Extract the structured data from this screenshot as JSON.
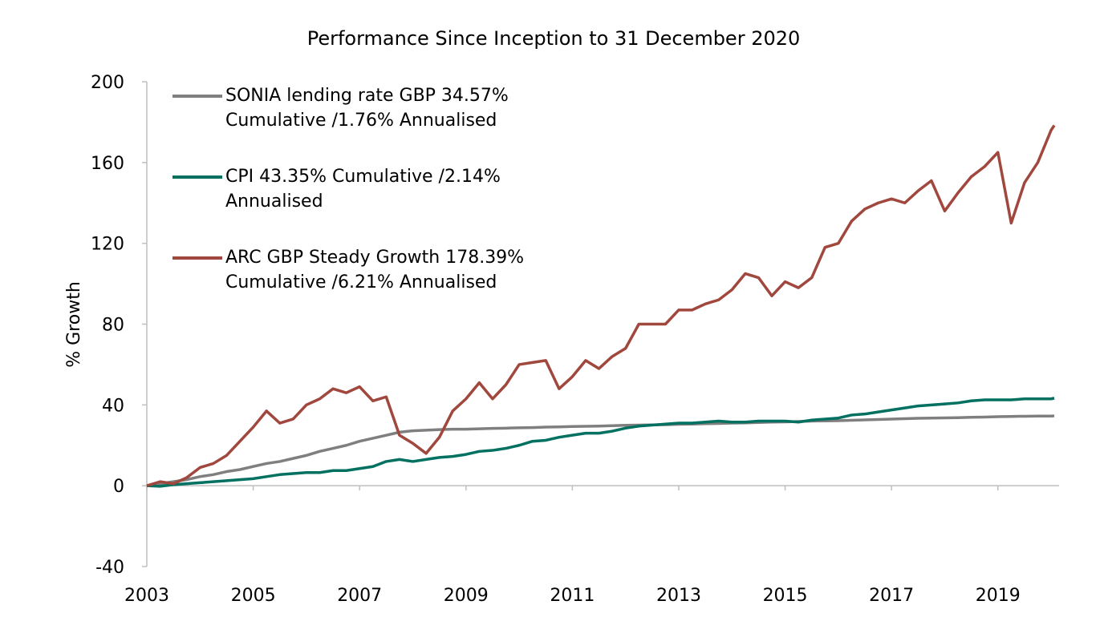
{
  "chart_data": {
    "type": "line",
    "title": "Performance Since Inception to 31 December 2020",
    "y_label": "% Growth",
    "x": [
      2003,
      2003.25,
      2003.5,
      2003.75,
      2004,
      2004.25,
      2004.5,
      2004.75,
      2005,
      2005.25,
      2005.5,
      2005.75,
      2006,
      2006.25,
      2006.5,
      2006.75,
      2007,
      2007.25,
      2007.5,
      2007.75,
      2008,
      2008.25,
      2008.5,
      2008.75,
      2009,
      2009.25,
      2009.5,
      2009.75,
      2010,
      2010.25,
      2010.5,
      2010.75,
      2011,
      2011.25,
      2011.5,
      2011.75,
      2012,
      2012.25,
      2012.5,
      2012.75,
      2013,
      2013.25,
      2013.5,
      2013.75,
      2014,
      2014.25,
      2014.5,
      2014.75,
      2015,
      2015.25,
      2015.5,
      2015.75,
      2016,
      2016.25,
      2016.5,
      2016.75,
      2017,
      2017.25,
      2017.5,
      2017.75,
      2018,
      2018.25,
      2018.5,
      2018.75,
      2019,
      2019.25,
      2019.5,
      2019.75,
      2020,
      2020.06
    ],
    "series": [
      {
        "name": "SONIA lending rate GBP 34.57% Cumulative /1.76% Annualised",
        "color": "#7f7f7f",
        "values": [
          0,
          1,
          2,
          3,
          4.5,
          5.5,
          7,
          8,
          9.5,
          11,
          12,
          13.5,
          15,
          17,
          18.5,
          20,
          22,
          23.5,
          25,
          26.5,
          27.2,
          27.5,
          27.8,
          28,
          28,
          28.2,
          28.4,
          28.5,
          28.7,
          28.8,
          29,
          29.1,
          29.3,
          29.4,
          29.5,
          29.7,
          29.9,
          30,
          30.1,
          30.2,
          30.4,
          30.5,
          30.7,
          30.8,
          31,
          31.1,
          31.3,
          31.5,
          31.6,
          31.8,
          32,
          32.1,
          32.2,
          32.4,
          32.6,
          32.8,
          33,
          33.2,
          33.4,
          33.5,
          33.6,
          33.7,
          33.9,
          34,
          34.2,
          34.3,
          34.4,
          34.5,
          34.5,
          34.57
        ]
      },
      {
        "name": "CPI 43.35% Cumulative /2.14% Annualised",
        "color": "#007060",
        "values": [
          0,
          -0.3,
          0.5,
          1,
          1.5,
          2,
          2.5,
          3,
          3.5,
          4.5,
          5.5,
          6,
          6.5,
          6.5,
          7.5,
          7.5,
          8.5,
          9.5,
          12,
          13,
          12,
          13,
          14,
          14.5,
          15.5,
          17,
          17.5,
          18.5,
          20,
          22,
          22.5,
          24,
          25,
          26,
          26,
          27,
          28.5,
          29.5,
          30,
          30.5,
          31,
          31,
          31.5,
          32,
          31.5,
          31.5,
          32,
          32,
          32,
          31.5,
          32.5,
          33,
          33.5,
          35,
          35.5,
          36.5,
          37.5,
          38.5,
          39.5,
          40,
          40.5,
          41,
          42,
          42.5,
          42.5,
          42.5,
          43,
          43,
          43,
          43.35
        ]
      },
      {
        "name": "ARC GBP Steady Growth 178.39% Cumulative /6.21% Annualised",
        "color": "#a0473e",
        "values": [
          0,
          2,
          1,
          4,
          9,
          11,
          15,
          22,
          29,
          37,
          31,
          33,
          40,
          43,
          48,
          46,
          49,
          42,
          44,
          25,
          21,
          16,
          24,
          37,
          43,
          51,
          43,
          50,
          60,
          61,
          62,
          48,
          54,
          62,
          58,
          64,
          68,
          80,
          80,
          80,
          87,
          87,
          90,
          92,
          97,
          105,
          103,
          94,
          101,
          98,
          103,
          118,
          120,
          131,
          137,
          140,
          142,
          140,
          146,
          151,
          136,
          145,
          153,
          158,
          165,
          130,
          150,
          160,
          176,
          178.39
        ]
      }
    ],
    "xlim": [
      2003,
      2020.15
    ],
    "xticks": [
      2003,
      2005,
      2007,
      2009,
      2011,
      2013,
      2015,
      2017,
      2019
    ],
    "ylim": [
      -40,
      200
    ],
    "yticks": [
      -40,
      0,
      40,
      80,
      120,
      160,
      200
    ],
    "grid": false,
    "legend": "top-left"
  }
}
